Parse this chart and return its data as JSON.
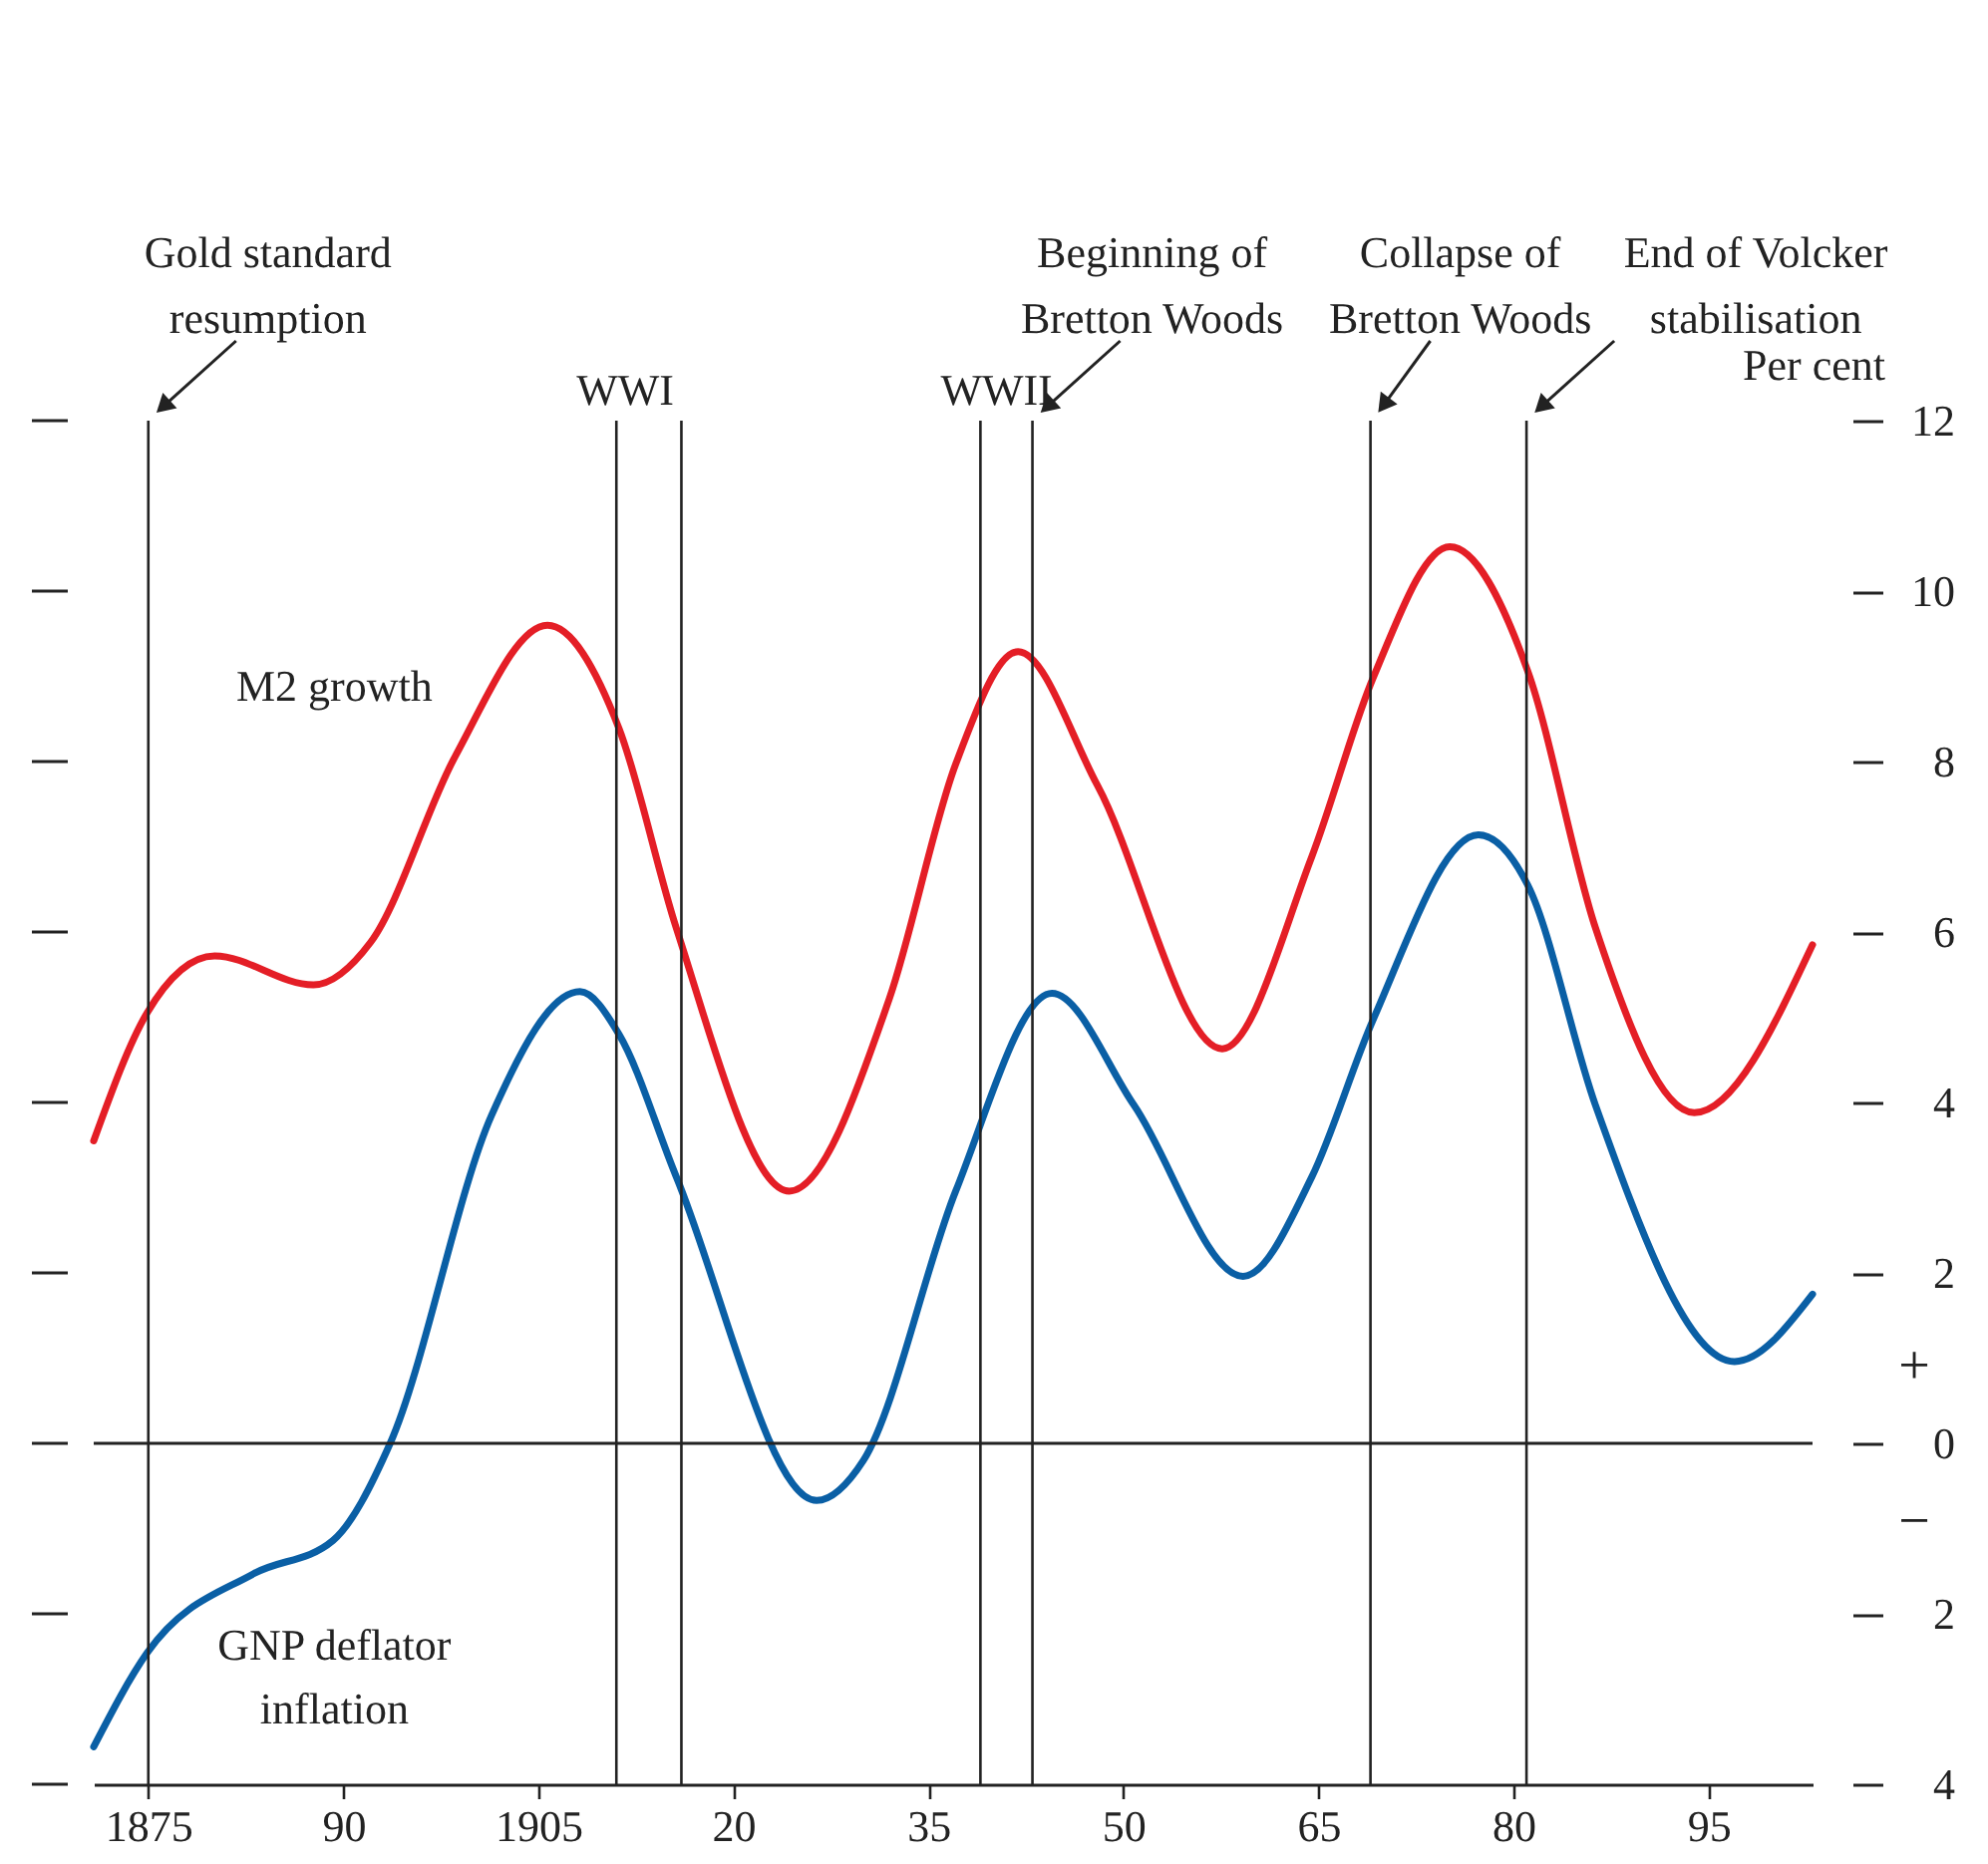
{
  "chart_data": {
    "type": "line",
    "ylabel": "Per cent",
    "x": [
      1870.8,
      1874.9,
      1880.1,
      1887.7,
      1892.1,
      1898.6,
      1905.7,
      1911.2,
      1915.6,
      1924.3,
      1932.0,
      1937.1,
      1941.9,
      1948.0,
      1957.6,
      1964.5,
      1969.2,
      1975.1,
      1981.1,
      1986.3,
      1993.9,
      2003.0
    ],
    "series": [
      {
        "name": "M2 growth",
        "color": "#e41e26",
        "values": [
          3.55,
          5.05,
          5.72,
          5.38,
          5.88,
          8.06,
          9.6,
          8.39,
          6.05,
          2.96,
          5.22,
          7.97,
          9.29,
          7.72,
          4.63,
          6.89,
          8.98,
          10.52,
          9.06,
          6.05,
          3.88,
          5.85
        ]
      },
      {
        "name": "GNP deflator inflation",
        "color": "#0a5fa5",
        "x": [
          1870.8,
          1874.9,
          1883.1,
          1889.2,
          1893.6,
          1901.4,
          1908.2,
          1911.2,
          1915.6,
          1926.4,
          1930.0,
          1937.1,
          1944.5,
          1950.8,
          1959.2,
          1964.5,
          1969.2,
          1977.3,
          1981.1,
          1986.3,
          1997.0,
          2003.0
        ],
        "values": [
          -3.56,
          -2.46,
          -1.53,
          -1.14,
          0.0,
          3.85,
          5.3,
          4.8,
          3.13,
          -0.67,
          -0.2,
          2.96,
          5.28,
          3.97,
          1.96,
          3.13,
          4.97,
          7.14,
          6.55,
          3.97,
          0.96,
          1.75
        ]
      }
    ],
    "xlim": [
      1870.8,
      2003
    ],
    "xticks": [
      {
        "value": 1875,
        "label": "1875"
      },
      {
        "value": 1890,
        "label": "90"
      },
      {
        "value": 1905,
        "label": "1905"
      },
      {
        "value": 1920,
        "label": "20"
      },
      {
        "value": 1935,
        "label": "35"
      },
      {
        "value": 1950,
        "label": "50"
      },
      {
        "value": 1965,
        "label": "65"
      },
      {
        "value": 1980,
        "label": "80"
      },
      {
        "value": 1995,
        "label": "95"
      }
    ],
    "ylim": [
      -4,
      12
    ],
    "yticks": [
      {
        "value": -4,
        "label": "4"
      },
      {
        "value": -2,
        "label": "2"
      },
      0,
      2,
      4,
      6,
      8,
      10,
      12
    ],
    "ref_lines": [
      {
        "axis": "y",
        "value": 0,
        "label": null
      },
      {
        "axis": "x",
        "value": 1875,
        "label": "Gold standard resumption"
      },
      {
        "axis": "x",
        "value": 1911,
        "label": null
      },
      {
        "axis": "x",
        "value": 1916,
        "label": null
      },
      {
        "axis": "x",
        "value": 1939,
        "label": null
      },
      {
        "axis": "x",
        "value": 1943,
        "label": "Beginning of Bretton Woods"
      },
      {
        "axis": "x",
        "value": 1969,
        "label": "Collapse of Bretton Woods"
      },
      {
        "axis": "x",
        "value": 1981,
        "label": "End of Volcker stabilisation"
      }
    ],
    "annotations": [
      {
        "text": "WWI",
        "x": 1911,
        "y": 12
      },
      {
        "text": "WWII",
        "x": 1939,
        "y": 12
      },
      "+",
      "−"
    ],
    "grid": false,
    "marker": "none",
    "line_style": "solid"
  }
}
